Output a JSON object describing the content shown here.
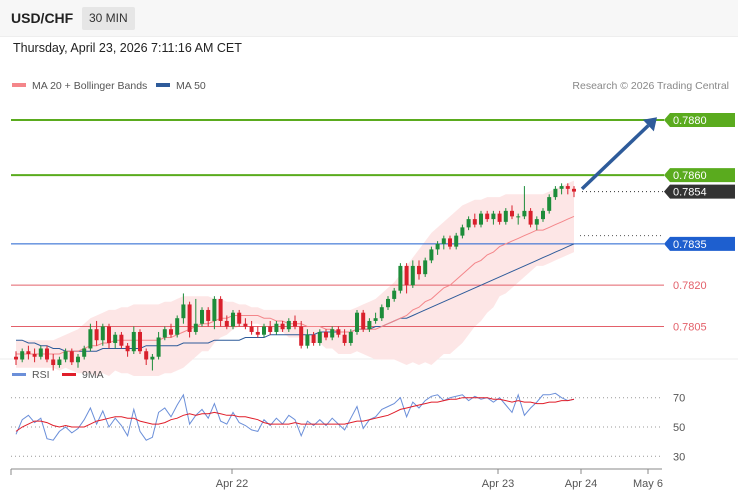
{
  "header": {
    "symbol": "USD/CHF",
    "timeframe": "30 MIN"
  },
  "datetime": "Thursday, April 23, 2026 7:11:16 AM CET",
  "legend": {
    "ma20_label": "MA 20 + Bollinger Bands",
    "ma50_label": "MA 50",
    "copyright": "Research © 2026 Trading Central"
  },
  "colors": {
    "ma20": "#f4868a",
    "ma50": "#2e5b9a",
    "bands_fill": "#fde3e3",
    "candle_up": "#1d8c3a",
    "candle_down": "#d9202c",
    "green_level": "#5aab1e",
    "blue_level": "#1e5fcf",
    "red_level": "#e3606a",
    "rsi": "#6b8fd9",
    "rsi_ma": "#e01e2a"
  },
  "chart_data": [
    {
      "type": "candlestick",
      "title": "USD/CHF 30 MIN",
      "ylim": [
        0.7791,
        0.7888
      ],
      "levels": [
        {
          "value": 0.788,
          "label": "0.7880",
          "style": "green"
        },
        {
          "value": 0.786,
          "label": "0.7860",
          "style": "green"
        },
        {
          "value": 0.7854,
          "label": "0.7854",
          "style": "current"
        },
        {
          "value": 0.7835,
          "label": "0.7835",
          "style": "blue"
        },
        {
          "value": 0.782,
          "label": "0.7820",
          "style": "red"
        },
        {
          "value": 0.7805,
          "label": "0.7805",
          "style": "red"
        }
      ],
      "forecast_arrow": {
        "from": 0.7855,
        "to": 0.7881
      },
      "x_ticks": [
        "Apr 22",
        "Apr 23",
        "Apr 24",
        "May 6"
      ],
      "candles": [
        [
          0.7794,
          0.7796,
          0.7791,
          0.7793
        ],
        [
          0.7793,
          0.7797,
          0.7792,
          0.7796
        ],
        [
          0.7796,
          0.7798,
          0.7793,
          0.7795
        ],
        [
          0.7795,
          0.7797,
          0.7792,
          0.7794
        ],
        [
          0.7794,
          0.7798,
          0.7793,
          0.7797
        ],
        [
          0.7797,
          0.7798,
          0.7792,
          0.7793
        ],
        [
          0.7793,
          0.7795,
          0.7789,
          0.7791
        ],
        [
          0.7791,
          0.7794,
          0.779,
          0.7793
        ],
        [
          0.7793,
          0.7797,
          0.7792,
          0.7796
        ],
        [
          0.7796,
          0.7797,
          0.7791,
          0.7792
        ],
        [
          0.7792,
          0.7795,
          0.779,
          0.7794
        ],
        [
          0.7794,
          0.7798,
          0.7793,
          0.7797
        ],
        [
          0.7797,
          0.7806,
          0.7796,
          0.7804
        ],
        [
          0.7804,
          0.7807,
          0.7798,
          0.78
        ],
        [
          0.78,
          0.7806,
          0.7798,
          0.7805
        ],
        [
          0.7805,
          0.7806,
          0.7797,
          0.7799
        ],
        [
          0.7799,
          0.7803,
          0.7797,
          0.7802
        ],
        [
          0.7802,
          0.7803,
          0.7797,
          0.7798
        ],
        [
          0.7798,
          0.7799,
          0.7794,
          0.7796
        ],
        [
          0.7796,
          0.7805,
          0.7795,
          0.7803
        ],
        [
          0.7803,
          0.7804,
          0.7795,
          0.7796
        ],
        [
          0.7796,
          0.7797,
          0.7791,
          0.7793
        ],
        [
          0.7793,
          0.7795,
          0.7789,
          0.7794
        ],
        [
          0.7794,
          0.7803,
          0.7793,
          0.7801
        ],
        [
          0.7801,
          0.7805,
          0.78,
          0.7804
        ],
        [
          0.7804,
          0.7806,
          0.7801,
          0.7802
        ],
        [
          0.7802,
          0.7809,
          0.7801,
          0.7808
        ],
        [
          0.7808,
          0.7817,
          0.7806,
          0.7813
        ],
        [
          0.7813,
          0.7814,
          0.7801,
          0.7803
        ],
        [
          0.7803,
          0.7815,
          0.7802,
          0.7806
        ],
        [
          0.7806,
          0.7812,
          0.7805,
          0.7811
        ],
        [
          0.7811,
          0.7812,
          0.7805,
          0.7807
        ],
        [
          0.7807,
          0.7816,
          0.7804,
          0.7815
        ],
        [
          0.7815,
          0.7816,
          0.7805,
          0.7807
        ],
        [
          0.7807,
          0.7809,
          0.7804,
          0.7805
        ],
        [
          0.7805,
          0.7811,
          0.7804,
          0.781
        ],
        [
          0.781,
          0.7811,
          0.7805,
          0.7806
        ],
        [
          0.7806,
          0.7808,
          0.7804,
          0.7805
        ],
        [
          0.7805,
          0.7807,
          0.7802,
          0.7803
        ],
        [
          0.7803,
          0.7805,
          0.7801,
          0.7802
        ],
        [
          0.7802,
          0.7806,
          0.7801,
          0.7805
        ],
        [
          0.7805,
          0.7807,
          0.7802,
          0.7803
        ],
        [
          0.7803,
          0.7807,
          0.7802,
          0.7806
        ],
        [
          0.7806,
          0.7807,
          0.7803,
          0.7804
        ],
        [
          0.7804,
          0.7808,
          0.7803,
          0.7807
        ],
        [
          0.7807,
          0.7809,
          0.7804,
          0.7805
        ],
        [
          0.7805,
          0.7807,
          0.7797,
          0.7798
        ],
        [
          0.7798,
          0.7804,
          0.7797,
          0.7802
        ],
        [
          0.7802,
          0.7803,
          0.7798,
          0.7799
        ],
        [
          0.7799,
          0.7804,
          0.7798,
          0.7803
        ],
        [
          0.7803,
          0.7804,
          0.78,
          0.7801
        ],
        [
          0.7801,
          0.7805,
          0.78,
          0.7804
        ],
        [
          0.7804,
          0.7805,
          0.7801,
          0.7802
        ],
        [
          0.7802,
          0.7804,
          0.7798,
          0.7799
        ],
        [
          0.7799,
          0.7804,
          0.7798,
          0.7803
        ],
        [
          0.7803,
          0.7811,
          0.7802,
          0.781
        ],
        [
          0.781,
          0.7811,
          0.7803,
          0.7804
        ],
        [
          0.7804,
          0.7808,
          0.7803,
          0.7807
        ],
        [
          0.7807,
          0.781,
          0.7806,
          0.7808
        ],
        [
          0.7808,
          0.7813,
          0.7807,
          0.7812
        ],
        [
          0.7812,
          0.7816,
          0.7811,
          0.7815
        ],
        [
          0.7815,
          0.7819,
          0.7814,
          0.7818
        ],
        [
          0.7818,
          0.7828,
          0.7817,
          0.7827
        ],
        [
          0.7827,
          0.7828,
          0.7817,
          0.782
        ],
        [
          0.782,
          0.7829,
          0.7819,
          0.7827
        ],
        [
          0.7827,
          0.7829,
          0.7822,
          0.7824
        ],
        [
          0.7824,
          0.783,
          0.7823,
          0.7829
        ],
        [
          0.7829,
          0.7834,
          0.7828,
          0.7833
        ],
        [
          0.7833,
          0.7836,
          0.7831,
          0.7835
        ],
        [
          0.7835,
          0.7838,
          0.7833,
          0.7837
        ],
        [
          0.7837,
          0.7838,
          0.7833,
          0.7834
        ],
        [
          0.7834,
          0.7839,
          0.7833,
          0.7838
        ],
        [
          0.7838,
          0.7842,
          0.7837,
          0.7841
        ],
        [
          0.7841,
          0.7845,
          0.784,
          0.7844
        ],
        [
          0.7844,
          0.7846,
          0.7841,
          0.7842
        ],
        [
          0.7842,
          0.7847,
          0.7841,
          0.7846
        ],
        [
          0.7846,
          0.7847,
          0.7843,
          0.7844
        ],
        [
          0.7844,
          0.7847,
          0.7842,
          0.7846
        ],
        [
          0.7846,
          0.7847,
          0.7842,
          0.7843
        ],
        [
          0.7843,
          0.7848,
          0.7842,
          0.7847
        ],
        [
          0.7847,
          0.7849,
          0.7844,
          0.7845
        ],
        [
          0.7845,
          0.7846,
          0.7842,
          0.7845
        ],
        [
          0.7845,
          0.7856,
          0.7844,
          0.7847
        ],
        [
          0.7847,
          0.7848,
          0.7841,
          0.7842
        ],
        [
          0.7842,
          0.7845,
          0.784,
          0.7844
        ],
        [
          0.7844,
          0.7848,
          0.7843,
          0.7847
        ],
        [
          0.7847,
          0.7853,
          0.7846,
          0.7852
        ],
        [
          0.7852,
          0.7856,
          0.7851,
          0.7855
        ],
        [
          0.7855,
          0.7857,
          0.7853,
          0.7856
        ],
        [
          0.7856,
          0.7857,
          0.7853,
          0.7855
        ],
        [
          0.7855,
          0.7856,
          0.7852,
          0.7854
        ]
      ],
      "ma20": [
        0.7795,
        0.7795,
        0.7795,
        0.7795,
        0.7795,
        0.7795,
        0.7795,
        0.7795,
        0.7796,
        0.7796,
        0.7796,
        0.7797,
        0.7798,
        0.7798,
        0.7799,
        0.7799,
        0.78,
        0.78,
        0.78,
        0.78,
        0.78,
        0.78,
        0.78,
        0.78,
        0.7801,
        0.7801,
        0.7802,
        0.7803,
        0.7804,
        0.7805,
        0.7806,
        0.7806,
        0.7807,
        0.7808,
        0.7808,
        0.7809,
        0.7809,
        0.7809,
        0.7809,
        0.7809,
        0.7808,
        0.7808,
        0.7807,
        0.7807,
        0.7806,
        0.7806,
        0.7806,
        0.7805,
        0.7805,
        0.7805,
        0.7804,
        0.7804,
        0.7803,
        0.7803,
        0.7803,
        0.7804,
        0.7804,
        0.7804,
        0.7804,
        0.7805,
        0.7806,
        0.7807,
        0.7808,
        0.7809,
        0.7811,
        0.7812,
        0.7814,
        0.7815,
        0.7817,
        0.7819,
        0.782,
        0.7822,
        0.7824,
        0.7826,
        0.7828,
        0.7829,
        0.7831,
        0.7832,
        0.7834,
        0.7835,
        0.7836,
        0.7837,
        0.7838,
        0.7839,
        0.784,
        0.784,
        0.7841,
        0.7842,
        0.7843,
        0.7844,
        0.7845
      ],
      "bb_upper": [
        0.78,
        0.78,
        0.78,
        0.78,
        0.78,
        0.78,
        0.78,
        0.7801,
        0.7802,
        0.7803,
        0.7804,
        0.7806,
        0.7808,
        0.7809,
        0.781,
        0.7811,
        0.7811,
        0.7812,
        0.7812,
        0.7813,
        0.7813,
        0.7813,
        0.7813,
        0.7813,
        0.7814,
        0.7814,
        0.7815,
        0.7816,
        0.7816,
        0.7816,
        0.7816,
        0.7816,
        0.7815,
        0.7815,
        0.7814,
        0.7814,
        0.7813,
        0.7813,
        0.7812,
        0.7812,
        0.7811,
        0.7811,
        0.7811,
        0.7811,
        0.7811,
        0.7811,
        0.7811,
        0.7811,
        0.7811,
        0.7811,
        0.7811,
        0.7811,
        0.7811,
        0.7811,
        0.7811,
        0.7812,
        0.7813,
        0.7814,
        0.7815,
        0.7817,
        0.7819,
        0.7821,
        0.7824,
        0.7827,
        0.783,
        0.7833,
        0.7836,
        0.7839,
        0.7841,
        0.7843,
        0.7845,
        0.7847,
        0.7849,
        0.785,
        0.7851,
        0.7851,
        0.7852,
        0.7852,
        0.7852,
        0.7853,
        0.7853,
        0.7853,
        0.7853,
        0.7853,
        0.7853,
        0.7853,
        0.7854,
        0.7855,
        0.7856,
        0.7857,
        0.7858
      ],
      "bb_lower": [
        0.779,
        0.779,
        0.779,
        0.779,
        0.779,
        0.779,
        0.779,
        0.7789,
        0.779,
        0.7789,
        0.7788,
        0.7788,
        0.7788,
        0.7787,
        0.7788,
        0.7787,
        0.7789,
        0.7788,
        0.7788,
        0.7787,
        0.7787,
        0.7787,
        0.7787,
        0.7787,
        0.7788,
        0.7788,
        0.7789,
        0.779,
        0.7792,
        0.7794,
        0.7796,
        0.7796,
        0.7799,
        0.7801,
        0.7802,
        0.7804,
        0.7805,
        0.7805,
        0.7806,
        0.7806,
        0.7805,
        0.7805,
        0.7803,
        0.7803,
        0.7801,
        0.7801,
        0.7801,
        0.7799,
        0.7799,
        0.7799,
        0.7797,
        0.7797,
        0.7795,
        0.7795,
        0.7795,
        0.7796,
        0.7795,
        0.7794,
        0.7793,
        0.7793,
        0.7793,
        0.7793,
        0.7792,
        0.7791,
        0.7792,
        0.7791,
        0.7792,
        0.7791,
        0.7793,
        0.7795,
        0.7795,
        0.7797,
        0.7799,
        0.7802,
        0.7805,
        0.7807,
        0.781,
        0.7812,
        0.7816,
        0.7817,
        0.7819,
        0.7821,
        0.7823,
        0.7825,
        0.7827,
        0.7827,
        0.7828,
        0.7829,
        0.783,
        0.7831,
        0.7832
      ],
      "ma50": [
        0.78,
        0.78,
        0.7799,
        0.7799,
        0.7798,
        0.7798,
        0.7797,
        0.7797,
        0.7796,
        0.7796,
        0.7796,
        0.7796,
        0.7796,
        0.7796,
        0.7797,
        0.7797,
        0.7797,
        0.7797,
        0.7797,
        0.7797,
        0.7797,
        0.7798,
        0.7798,
        0.7798,
        0.7798,
        0.7798,
        0.7798,
        0.7799,
        0.7799,
        0.7799,
        0.7799,
        0.7799,
        0.78,
        0.78,
        0.78,
        0.78,
        0.78,
        0.7801,
        0.7801,
        0.7801,
        0.7801,
        0.7802,
        0.7802,
        0.7802,
        0.7802,
        0.7802,
        0.7802,
        0.7802,
        0.7802,
        0.7803,
        0.7803,
        0.7803,
        0.7803,
        0.7803,
        0.7803,
        0.7804,
        0.7804,
        0.7804,
        0.7805,
        0.7805,
        0.7806,
        0.7807,
        0.7808,
        0.7808,
        0.7809,
        0.781,
        0.7811,
        0.7812,
        0.7813,
        0.7814,
        0.7815,
        0.7816,
        0.7817,
        0.7818,
        0.7819,
        0.782,
        0.7821,
        0.7822,
        0.7823,
        0.7824,
        0.7825,
        0.7826,
        0.7827,
        0.7828,
        0.7829,
        0.783,
        0.7831,
        0.7832,
        0.7833,
        0.7834,
        0.7835
      ]
    },
    {
      "type": "line",
      "title": "RSI",
      "ylim": [
        22,
        78
      ],
      "y_ticks": [
        70,
        50,
        30
      ],
      "series": [
        {
          "name": "RSI",
          "values": [
            45,
            55,
            58,
            53,
            56,
            42,
            41,
            47,
            50,
            46,
            49,
            55,
            63,
            52,
            61,
            50,
            56,
            51,
            44,
            62,
            47,
            41,
            43,
            60,
            63,
            57,
            65,
            72,
            52,
            58,
            62,
            56,
            66,
            54,
            52,
            60,
            53,
            51,
            48,
            47,
            55,
            51,
            56,
            52,
            58,
            55,
            44,
            54,
            51,
            55,
            51,
            56,
            52,
            48,
            56,
            64,
            49,
            55,
            57,
            62,
            64,
            66,
            70,
            57,
            67,
            63,
            68,
            71,
            72,
            68,
            70,
            71,
            72,
            68,
            71,
            69,
            70,
            67,
            70,
            65,
            60,
            72,
            58,
            63,
            67,
            72,
            72,
            73,
            70,
            68,
            69
          ]
        },
        {
          "name": "9MA",
          "values": [
            47,
            50,
            52,
            54,
            54,
            53,
            51,
            50,
            51,
            50,
            50,
            50,
            52,
            54,
            55,
            56,
            57,
            57,
            56,
            56,
            54,
            53,
            52,
            52,
            53,
            55,
            56,
            58,
            59,
            58,
            59,
            59,
            60,
            59,
            58,
            58,
            57,
            57,
            56,
            55,
            53,
            52,
            52,
            52,
            52,
            53,
            52,
            52,
            52,
            52,
            52,
            52,
            52,
            52,
            53,
            54,
            54,
            55,
            56,
            57,
            58,
            60,
            62,
            63,
            64,
            65,
            66,
            67,
            67,
            68,
            69,
            69,
            70,
            70,
            70,
            70,
            70,
            69,
            69,
            68,
            67,
            68,
            67,
            67,
            66,
            66,
            67,
            67,
            68,
            68,
            69
          ]
        }
      ]
    }
  ]
}
